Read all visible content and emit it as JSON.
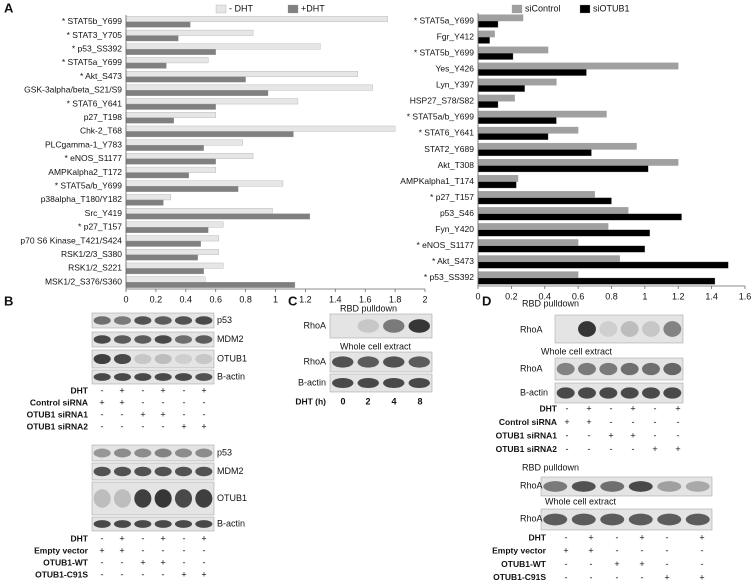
{
  "panel_labels": [
    "A",
    "B",
    "C",
    "D"
  ],
  "chart_data": [
    {
      "type": "bar",
      "orientation": "horizontal",
      "categories": [
        "* STAT5b_Y699",
        "* STAT3_Y705",
        "* p53_SS392",
        "* STAT5a_Y699",
        "* Akt_S473",
        "GSK-3alpha/beta_S21/S9",
        "* STAT6_Y641",
        "p27_T198",
        "Chk-2_T68",
        "PLCgamma-1_Y783",
        "* eNOS_S1177",
        "AMPKalpha2_T172",
        "* STAT5a/b_Y699",
        "p38alpha_T180/Y182",
        "Src_Y419",
        "* p27_T157",
        "p70 S6 Kinase_T421/S424",
        "RSK1/2/3_S380",
        "RSK1/2_S221",
        "MSK1/2_S376/S360"
      ],
      "series": [
        {
          "name": "- DHT",
          "color": "#e6e6e6",
          "values": [
            1.75,
            0.85,
            1.3,
            0.55,
            1.55,
            1.65,
            1.15,
            0.6,
            1.8,
            0.78,
            0.85,
            0.6,
            1.05,
            0.3,
            0.98,
            0.65,
            0.62,
            0.62,
            0.65,
            0.53
          ]
        },
        {
          "name": "+DHT",
          "color": "#808080",
          "values": [
            0.43,
            0.35,
            0.6,
            0.27,
            0.8,
            0.95,
            0.6,
            0.32,
            1.12,
            0.52,
            0.6,
            0.42,
            0.75,
            0.25,
            1.23,
            0.55,
            0.5,
            0.48,
            0.52,
            1.13
          ]
        }
      ],
      "xlim": [
        0,
        2
      ],
      "xticks": [
        0,
        0.2,
        0.4,
        0.6,
        0.8,
        1,
        1.2,
        1.4,
        1.6,
        1.8,
        2
      ]
    },
    {
      "type": "bar",
      "orientation": "horizontal",
      "categories": [
        "* STAT5a_Y699",
        "Fgr_Y412",
        "* STAT5b_Y699",
        "Yes_Y426",
        "Lyn_Y397",
        "HSP27_S78/S82",
        "* STAT5a/b_Y699",
        "* STAT6_Y641",
        "STAT2_Y689",
        "Akt_T308",
        "AMPKalpha1_T174",
        "* p27_T157",
        "p53_S46",
        "Fyn_Y420",
        "* eNOS_S1177",
        "* Akt_S473",
        "* p53_SS392"
      ],
      "series": [
        {
          "name": "siControl",
          "color": "#a0a0a0",
          "values": [
            0.27,
            0.1,
            0.42,
            1.2,
            0.47,
            0.22,
            0.77,
            0.6,
            0.95,
            1.2,
            0.24,
            0.7,
            0.9,
            0.78,
            0.6,
            0.85,
            0.6
          ]
        },
        {
          "name": "siOTUB1",
          "color": "#000000",
          "values": [
            0.12,
            0.07,
            0.21,
            0.65,
            0.28,
            0.12,
            0.47,
            0.42,
            0.68,
            1.02,
            0.23,
            0.8,
            1.22,
            1.03,
            1.0,
            1.5,
            1.42
          ]
        }
      ],
      "xlim": [
        0,
        1.6
      ],
      "xticks": [
        0,
        0.2,
        0.4,
        0.6,
        0.8,
        1,
        1.2,
        1.4,
        1.6
      ]
    }
  ],
  "blots": {
    "B": {
      "top": {
        "bands": [
          "p53",
          "MDM2",
          "OTUB1",
          "B-actin"
        ],
        "rows": [
          {
            "label": "DHT",
            "marks": [
              "-",
              "+",
              "-",
              "+",
              "-",
              "+"
            ]
          },
          {
            "label": "Control siRNA",
            "marks": [
              "+",
              "+",
              "-",
              "-",
              "-",
              "-"
            ]
          },
          {
            "label": "OTUB1 siRNA1",
            "marks": [
              "-",
              "-",
              "+",
              "+",
              "-",
              "-"
            ]
          },
          {
            "label": "OTUB1 siRNA2",
            "marks": [
              "-",
              "-",
              "-",
              "-",
              "+",
              "+"
            ]
          }
        ]
      },
      "bottom": {
        "bands": [
          "p53",
          "MDM2",
          "OTUB1",
          "B-actin"
        ],
        "rows": [
          {
            "label": "DHT",
            "marks": [
              "-",
              "+",
              "-",
              "+",
              "-",
              "+"
            ]
          },
          {
            "label": "Empty vector",
            "marks": [
              "+",
              "+",
              "-",
              "-",
              "-",
              "-"
            ]
          },
          {
            "label": "OTUB1-WT",
            "marks": [
              "-",
              "-",
              "+",
              "+",
              "-",
              "-"
            ]
          },
          {
            "label": "OTUB1-C91S",
            "marks": [
              "-",
              "-",
              "-",
              "-",
              "+",
              "+"
            ]
          }
        ]
      }
    },
    "C": {
      "pulldown_title": "RBD pulldown",
      "pulldown_bands": [
        "RhoA"
      ],
      "extract_title": "Whole cell extract",
      "extract_bands": [
        "RhoA",
        "B-actin"
      ],
      "row_label": "DHT (h)",
      "lanes": [
        "0",
        "2",
        "4",
        "8"
      ]
    },
    "D": {
      "top": {
        "pulldown_title": "RBD pulldown",
        "pulldown_bands": [
          "RhoA"
        ],
        "extract_title": "Whole cell extract",
        "extract_bands": [
          "RhoA",
          "B-actin"
        ],
        "rows": [
          {
            "label": "DHT",
            "marks": [
              "-",
              "+",
              "-",
              "+",
              "-",
              "+"
            ]
          },
          {
            "label": "Control siRNA",
            "marks": [
              "+",
              "+",
              "-",
              "-",
              "-",
              "-"
            ]
          },
          {
            "label": "OTUB1 siRNA1",
            "marks": [
              "-",
              "-",
              "+",
              "+",
              "-",
              "-"
            ]
          },
          {
            "label": "OTUB1 siRNA2",
            "marks": [
              "-",
              "-",
              "-",
              "-",
              "+",
              "+"
            ]
          }
        ]
      },
      "bottom": {
        "pulldown_title": "RBD pulldown",
        "pulldown_bands": [
          "RhoA"
        ],
        "extract_title": "Whole cell extract",
        "extract_bands": [
          "RhoA"
        ],
        "rows": [
          {
            "label": "DHT",
            "marks": [
              "-",
              "+",
              "-",
              "+",
              "-",
              "+"
            ]
          },
          {
            "label": "Empty vector",
            "marks": [
              "+",
              "+",
              "-",
              "-",
              "-",
              "-"
            ]
          },
          {
            "label": "OTUB1-WT",
            "marks": [
              "-",
              "-",
              "+",
              "+",
              "-",
              "-"
            ]
          },
          {
            "label": "OTUB1-C91S",
            "marks": [
              "-",
              "-",
              "-",
              "-",
              "+",
              "+"
            ]
          }
        ]
      }
    }
  }
}
